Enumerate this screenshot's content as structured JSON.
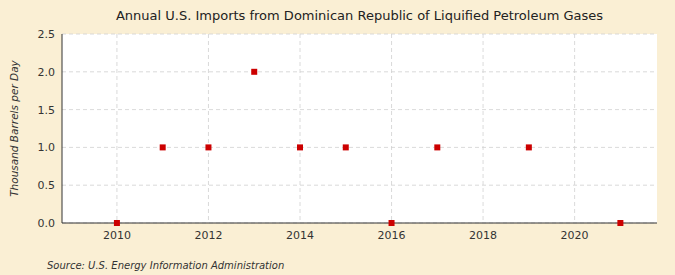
{
  "chart_data": {
    "type": "scatter",
    "title": "Annual U.S. Imports from Dominican Republic of Liquified Petroleum Gases",
    "y_label": "Thousand Barrels per Day",
    "source": "Source: U.S. Energy Information Administration",
    "x": [
      2010,
      2011,
      2012,
      2013,
      2014,
      2015,
      2016,
      2017,
      2019,
      2021
    ],
    "values": [
      0.0,
      1.0,
      1.0,
      2.0,
      1.0,
      1.0,
      0.0,
      1.0,
      1.0,
      0.0
    ],
    "color": "#cc0000",
    "marker": "square",
    "xlim": [
      2008.8,
      2021.8
    ],
    "ylim": [
      0.0,
      2.5
    ],
    "xticks": [
      2010,
      2012,
      2014,
      2016,
      2018,
      2020
    ],
    "yticks": [
      {
        "value": 0.0,
        "label": "0.0"
      },
      {
        "value": 0.5,
        "label": "0.5"
      },
      {
        "value": 1.0,
        "label": "1.0"
      },
      {
        "value": 1.5,
        "label": "1.5"
      },
      {
        "value": 2.0,
        "label": "2.0"
      },
      {
        "value": 2.5,
        "label": "2.5"
      }
    ],
    "grid": true
  }
}
